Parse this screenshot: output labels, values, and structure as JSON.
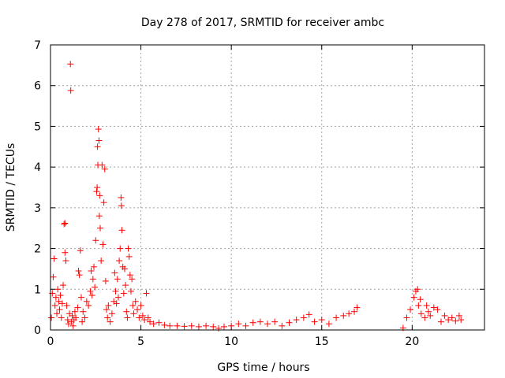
{
  "chart_data": {
    "type": "scatter",
    "title": "Day 278 of 2017, SRMTID for receiver ambc",
    "xlabel": "GPS time / hours",
    "ylabel": "SRMTID / TECUs",
    "xlim": [
      0,
      24
    ],
    "ylim": [
      0,
      7
    ],
    "xticks": [
      0,
      5,
      10,
      15,
      20
    ],
    "yticks": [
      0,
      1,
      2,
      3,
      4,
      5,
      6,
      7
    ],
    "xtick_labels": [
      "0",
      "5",
      "10",
      "15",
      "20"
    ],
    "ytick_labels": [
      "0",
      "1",
      "2",
      "3",
      "4",
      "5",
      "6",
      "7"
    ],
    "grid": true,
    "marker": "+",
    "color": "#ff0000",
    "series": [
      {
        "name": "SRMTID",
        "points": [
          [
            0.05,
            0.3
          ],
          [
            0.1,
            0.9
          ],
          [
            0.15,
            1.3
          ],
          [
            0.2,
            1.75
          ],
          [
            0.25,
            0.6
          ],
          [
            0.3,
            0.8
          ],
          [
            0.35,
            0.4
          ],
          [
            0.4,
            1.0
          ],
          [
            0.45,
            0.7
          ],
          [
            0.5,
            0.5
          ],
          [
            0.55,
            0.85
          ],
          [
            0.6,
            0.3
          ],
          [
            0.65,
            0.65
          ],
          [
            0.7,
            1.1
          ],
          [
            0.75,
            2.6
          ],
          [
            0.8,
            2.62
          ],
          [
            0.8,
            1.9
          ],
          [
            0.85,
            1.7
          ],
          [
            0.9,
            0.6
          ],
          [
            0.95,
            0.25
          ],
          [
            1.0,
            0.15
          ],
          [
            1.05,
            0.4
          ],
          [
            1.1,
            6.53
          ],
          [
            1.12,
            5.88
          ],
          [
            1.15,
            0.2
          ],
          [
            1.2,
            0.35
          ],
          [
            1.25,
            0.1
          ],
          [
            1.3,
            0.25
          ],
          [
            1.35,
            0.45
          ],
          [
            1.4,
            0.3
          ],
          [
            1.5,
            0.55
          ],
          [
            1.55,
            1.45
          ],
          [
            1.6,
            1.35
          ],
          [
            1.65,
            1.95
          ],
          [
            1.7,
            0.8
          ],
          [
            1.75,
            0.2
          ],
          [
            1.8,
            0.45
          ],
          [
            1.9,
            0.3
          ],
          [
            2.0,
            0.7
          ],
          [
            2.1,
            0.6
          ],
          [
            2.2,
            0.95
          ],
          [
            2.25,
            1.45
          ],
          [
            2.3,
            0.85
          ],
          [
            2.35,
            1.25
          ],
          [
            2.4,
            1.55
          ],
          [
            2.45,
            1.05
          ],
          [
            2.5,
            2.2
          ],
          [
            2.55,
            3.4
          ],
          [
            2.58,
            3.5
          ],
          [
            2.6,
            4.5
          ],
          [
            2.62,
            4.05
          ],
          [
            2.65,
            4.93
          ],
          [
            2.68,
            4.65
          ],
          [
            2.7,
            2.8
          ],
          [
            2.72,
            3.3
          ],
          [
            2.75,
            2.5
          ],
          [
            2.8,
            1.7
          ],
          [
            2.85,
            4.05
          ],
          [
            2.9,
            2.1
          ],
          [
            2.95,
            3.13
          ],
          [
            3.0,
            3.95
          ],
          [
            3.05,
            1.2
          ],
          [
            3.1,
            0.5
          ],
          [
            3.15,
            0.3
          ],
          [
            3.2,
            0.6
          ],
          [
            3.3,
            0.2
          ],
          [
            3.4,
            0.4
          ],
          [
            3.5,
            0.7
          ],
          [
            3.55,
            1.4
          ],
          [
            3.6,
            0.95
          ],
          [
            3.65,
            0.65
          ],
          [
            3.7,
            1.25
          ],
          [
            3.75,
            0.8
          ],
          [
            3.8,
            1.7
          ],
          [
            3.85,
            2.0
          ],
          [
            3.9,
            3.25
          ],
          [
            3.92,
            3.05
          ],
          [
            3.95,
            2.45
          ],
          [
            4.0,
            1.55
          ],
          [
            4.05,
            0.9
          ],
          [
            4.1,
            1.5
          ],
          [
            4.15,
            1.1
          ],
          [
            4.2,
            0.45
          ],
          [
            4.25,
            0.3
          ],
          [
            4.3,
            2.0
          ],
          [
            4.35,
            1.8
          ],
          [
            4.4,
            1.35
          ],
          [
            4.45,
            0.95
          ],
          [
            4.5,
            1.25
          ],
          [
            4.55,
            0.6
          ],
          [
            4.6,
            0.4
          ],
          [
            4.7,
            0.7
          ],
          [
            4.8,
            0.5
          ],
          [
            4.9,
            0.3
          ],
          [
            5.0,
            0.6
          ],
          [
            5.1,
            0.35
          ],
          [
            5.2,
            0.25
          ],
          [
            5.3,
            0.9
          ],
          [
            5.4,
            0.3
          ],
          [
            5.5,
            0.2
          ],
          [
            5.7,
            0.15
          ],
          [
            6.0,
            0.18
          ],
          [
            6.3,
            0.12
          ],
          [
            6.6,
            0.1
          ],
          [
            7.0,
            0.1
          ],
          [
            7.4,
            0.09
          ],
          [
            7.8,
            0.1
          ],
          [
            8.2,
            0.08
          ],
          [
            8.6,
            0.1
          ],
          [
            9.0,
            0.08
          ],
          [
            9.3,
            0.04
          ],
          [
            9.6,
            0.08
          ],
          [
            10.0,
            0.1
          ],
          [
            10.4,
            0.15
          ],
          [
            10.8,
            0.1
          ],
          [
            11.2,
            0.18
          ],
          [
            11.6,
            0.2
          ],
          [
            12.0,
            0.15
          ],
          [
            12.4,
            0.2
          ],
          [
            12.8,
            0.1
          ],
          [
            13.2,
            0.18
          ],
          [
            13.6,
            0.25
          ],
          [
            14.0,
            0.3
          ],
          [
            14.3,
            0.38
          ],
          [
            14.6,
            0.2
          ],
          [
            15.0,
            0.25
          ],
          [
            15.4,
            0.15
          ],
          [
            15.8,
            0.3
          ],
          [
            16.2,
            0.35
          ],
          [
            16.5,
            0.4
          ],
          [
            16.8,
            0.45
          ],
          [
            16.95,
            0.55
          ],
          [
            19.5,
            0.05
          ],
          [
            19.7,
            0.3
          ],
          [
            19.9,
            0.5
          ],
          [
            20.1,
            0.8
          ],
          [
            20.2,
            0.95
          ],
          [
            20.3,
            1.0
          ],
          [
            20.35,
            0.6
          ],
          [
            20.45,
            0.75
          ],
          [
            20.5,
            0.4
          ],
          [
            20.7,
            0.3
          ],
          [
            20.8,
            0.6
          ],
          [
            20.9,
            0.45
          ],
          [
            21.0,
            0.35
          ],
          [
            21.2,
            0.55
          ],
          [
            21.4,
            0.5
          ],
          [
            21.6,
            0.2
          ],
          [
            21.8,
            0.35
          ],
          [
            22.0,
            0.25
          ],
          [
            22.2,
            0.3
          ],
          [
            22.4,
            0.22
          ],
          [
            22.6,
            0.35
          ],
          [
            22.7,
            0.25
          ]
        ]
      }
    ]
  }
}
